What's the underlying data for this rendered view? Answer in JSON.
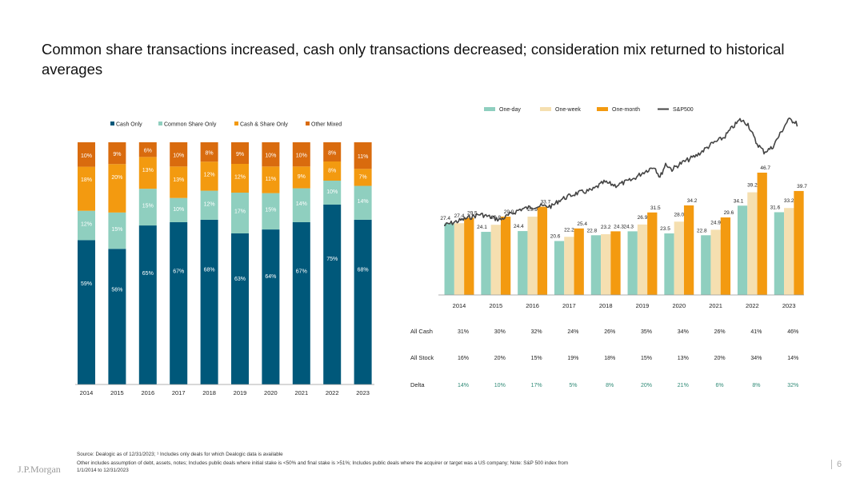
{
  "title": "Common share transactions increased, cash only transactions decreased; consideration mix returned to historical averages",
  "colors": {
    "cash": "#00587a",
    "share": "#8fcfbf",
    "cashshare": "#f39a10",
    "mixed": "#d96b0e",
    "oneday": "#8fcfbf",
    "oneweek": "#f5dfb0",
    "onemonth": "#f39a10",
    "sp500": "#444444",
    "delta": "#2f8a76"
  },
  "chart_data": [
    {
      "type": "bar",
      "stacked": true,
      "title": "",
      "categories": [
        "2014",
        "2015",
        "2016",
        "2017",
        "2018",
        "2019",
        "2020",
        "2021",
        "2022",
        "2023"
      ],
      "series": [
        {
          "name": "Cash Only",
          "values": [
            59,
            56,
            65,
            67,
            68,
            63,
            64,
            67,
            75,
            68
          ]
        },
        {
          "name": "Common Share Only",
          "values": [
            12,
            15,
            15,
            10,
            12,
            17,
            15,
            14,
            10,
            14
          ]
        },
        {
          "name": "Cash & Share Only",
          "values": [
            18,
            20,
            13,
            13,
            12,
            12,
            11,
            9,
            8,
            7
          ]
        },
        {
          "name": "Other Mixed",
          "values": [
            10,
            9,
            6,
            10,
            8,
            9,
            10,
            10,
            8,
            11
          ]
        }
      ],
      "labels": [
        [
          "59%",
          "12%",
          "18%",
          "10%"
        ],
        [
          "56%",
          "15%",
          "20%",
          "9%"
        ],
        [
          "65%",
          "15%",
          "13%",
          "6%"
        ],
        [
          "67%",
          "10%",
          "13%",
          "10%"
        ],
        [
          "68%",
          "12%",
          "12%",
          "8%"
        ],
        [
          "63%",
          "17%",
          "12%",
          "9%"
        ],
        [
          "64%",
          "15%",
          "11%",
          "10%"
        ],
        [
          "67%",
          "14%",
          "9%",
          "10%"
        ],
        [
          "75%",
          "10%",
          "8%",
          "8%"
        ],
        [
          "68%",
          "14%",
          "7%",
          "11%"
        ]
      ],
      "ylim": [
        0,
        100
      ],
      "legend": "top"
    },
    {
      "type": "bar",
      "title": "",
      "categories": [
        "2014",
        "2015",
        "2016",
        "2017",
        "2018",
        "2019",
        "2020",
        "2021",
        "2022",
        "2023"
      ],
      "series": [
        {
          "name": "One-day",
          "values": [
            27.4,
            24.1,
            24.4,
            20.6,
            22.8,
            24.3,
            23.5,
            22.8,
            34.1,
            31.6
          ]
        },
        {
          "name": "One-week",
          "values": [
            27.4,
            26.8,
            29.9,
            22.2,
            23.2,
            26.9,
            28.0,
            24.9,
            39.2,
            33.2
          ]
        },
        {
          "name": "One-month",
          "values": [
            29.5,
            29.9,
            33.7,
            25.4,
            24.3,
            31.5,
            34.2,
            29.6,
            46.7,
            39.7
          ]
        }
      ],
      "overlay": {
        "name": "S&P500",
        "type": "line"
      },
      "ylim": [
        0,
        50
      ],
      "legend": "top"
    }
  ],
  "legend_left": [
    "Cash Only",
    "Common Share Only",
    "Cash & Share Only",
    "Other Mixed"
  ],
  "legend_right": [
    "One-day",
    "One-week",
    "One-month",
    "S&P500"
  ],
  "table": {
    "rows": [
      {
        "label": "All Cash",
        "values": [
          "31%",
          "30%",
          "32%",
          "24%",
          "26%",
          "35%",
          "34%",
          "26%",
          "41%",
          "46%"
        ]
      },
      {
        "label": "All Stock",
        "values": [
          "16%",
          "20%",
          "15%",
          "19%",
          "18%",
          "15%",
          "13%",
          "20%",
          "34%",
          "14%"
        ]
      },
      {
        "label": "Delta",
        "values": [
          "14%",
          "10%",
          "17%",
          "5%",
          "8%",
          "20%",
          "21%",
          "6%",
          "8%",
          "32%"
        ]
      }
    ]
  },
  "footnotes": [
    "Source: Dealogic as of 12/31/2023; ¹ Includes only deals for which Dealogic data is available",
    "Other includes assumption of debt, assets, notes; Includes public deals where initial stake is <50% and final stake is >51%; Includes public deals where the acquirer or target was a US company; Note: S&P 500 index from",
    "1/1/2014 to 12/31/2023"
  ],
  "logo": "J.P.Morgan",
  "page_number": "6"
}
